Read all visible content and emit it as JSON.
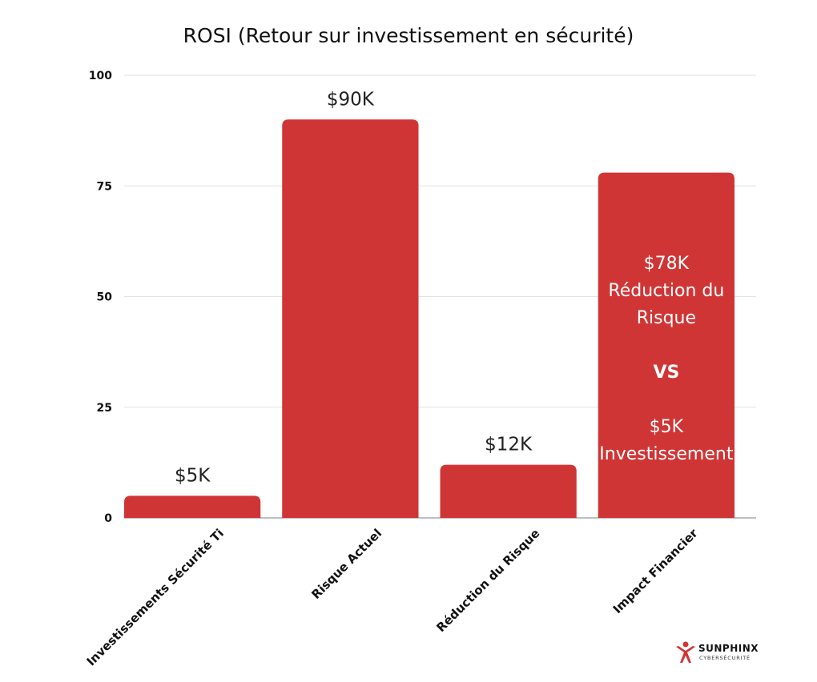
{
  "chart_data": {
    "type": "bar",
    "title": "ROSI (Retour sur investissement en sécurité)",
    "xlabel": "",
    "ylabel": "",
    "categories": [
      "Investissements Sécurité Ti",
      "Risque Actuel",
      "Réduction du Risque",
      "Impact Financier"
    ],
    "values": [
      5,
      90,
      12,
      78
    ],
    "data_labels": [
      "$5K",
      "$90K",
      "$12K",
      ""
    ],
    "inside_label": {
      "category_index": 3,
      "lines": [
        "$78K",
        "Réduction du",
        "Risque",
        "",
        "VS",
        "",
        "$5K",
        "Investissement"
      ],
      "bold_line_index": 4
    },
    "ylim": [
      0,
      100
    ],
    "yticks": [
      0,
      25,
      50,
      75,
      100
    ],
    "grid": true,
    "legend": "none",
    "colors": {
      "bar": "#d03535",
      "grid": "#e2e2e2",
      "axis": "#999999"
    }
  },
  "logo": {
    "brand": "SUNPHINX",
    "subtitle": "CYBERSÉCURITÉ",
    "color": "#d03535"
  }
}
